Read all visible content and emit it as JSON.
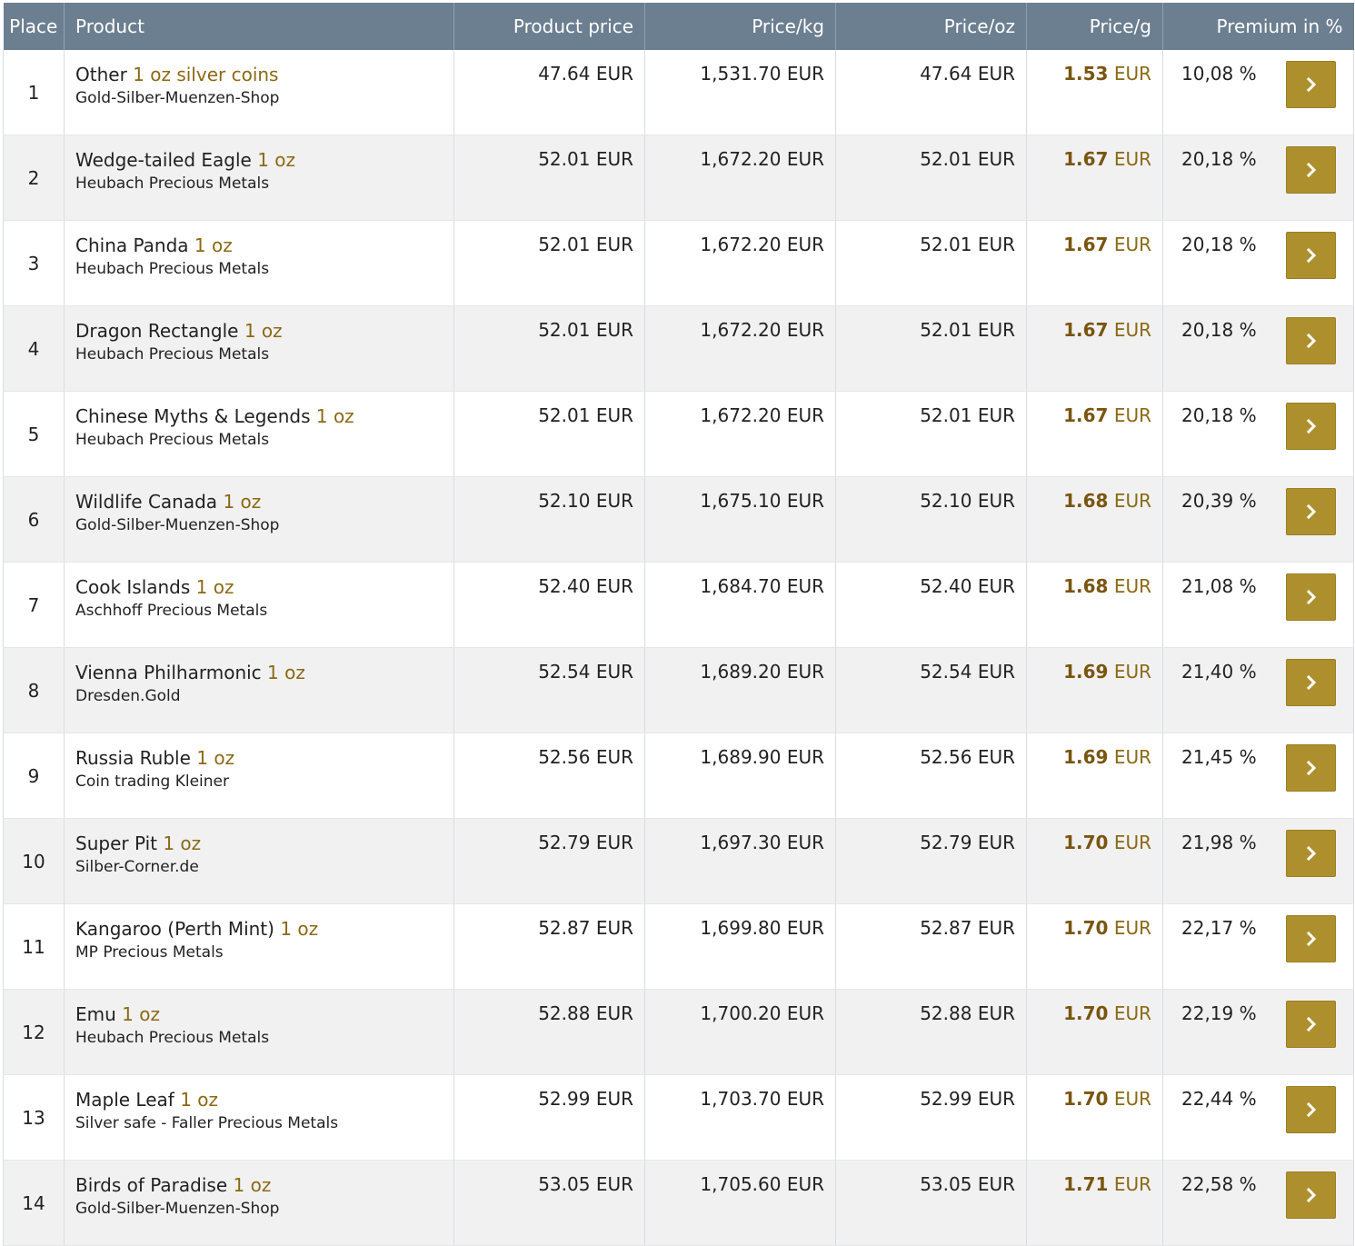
{
  "header": {
    "place": "Place",
    "product": "Product",
    "product_price": "Product price",
    "price_kg": "Price/kg",
    "price_oz": "Price/oz",
    "price_g": "Price/g",
    "premium": "Premium in %"
  },
  "currency": "EUR",
  "colors": {
    "header_bg": "#6c7f91",
    "accent_gold": "#ad8f2d",
    "weight_text": "#8b6914",
    "stripe": "#f1f1f2"
  },
  "icons": {
    "go": "chevron-right-icon"
  },
  "rows": [
    {
      "place": "1",
      "name": "Other",
      "weight": "1 oz silver coins",
      "shop": "Gold-Silber-Muenzen-Shop",
      "price": "47.64 EUR",
      "price_kg": "1,531.70 EUR",
      "price_oz": "47.64 EUR",
      "price_g": "1.53",
      "premium": "10,08 %"
    },
    {
      "place": "2",
      "name": "Wedge-tailed Eagle",
      "weight": "1 oz",
      "shop": "Heubach Precious Metals",
      "price": "52.01 EUR",
      "price_kg": "1,672.20 EUR",
      "price_oz": "52.01 EUR",
      "price_g": "1.67",
      "premium": "20,18 %"
    },
    {
      "place": "3",
      "name": "China Panda",
      "weight": "1 oz",
      "shop": "Heubach Precious Metals",
      "price": "52.01 EUR",
      "price_kg": "1,672.20 EUR",
      "price_oz": "52.01 EUR",
      "price_g": "1.67",
      "premium": "20,18 %"
    },
    {
      "place": "4",
      "name": "Dragon Rectangle",
      "weight": "1 oz",
      "shop": "Heubach Precious Metals",
      "price": "52.01 EUR",
      "price_kg": "1,672.20 EUR",
      "price_oz": "52.01 EUR",
      "price_g": "1.67",
      "premium": "20,18 %"
    },
    {
      "place": "5",
      "name": "Chinese Myths & Legends",
      "weight": "1 oz",
      "shop": "Heubach Precious Metals",
      "price": "52.01 EUR",
      "price_kg": "1,672.20 EUR",
      "price_oz": "52.01 EUR",
      "price_g": "1.67",
      "premium": "20,18 %"
    },
    {
      "place": "6",
      "name": "Wildlife Canada",
      "weight": "1 oz",
      "shop": "Gold-Silber-Muenzen-Shop",
      "price": "52.10 EUR",
      "price_kg": "1,675.10 EUR",
      "price_oz": "52.10 EUR",
      "price_g": "1.68",
      "premium": "20,39 %"
    },
    {
      "place": "7",
      "name": "Cook Islands",
      "weight": "1 oz",
      "shop": "Aschhoff Precious Metals",
      "price": "52.40 EUR",
      "price_kg": "1,684.70 EUR",
      "price_oz": "52.40 EUR",
      "price_g": "1.68",
      "premium": "21,08 %"
    },
    {
      "place": "8",
      "name": "Vienna Philharmonic",
      "weight": "1 oz",
      "shop": "Dresden.Gold",
      "price": "52.54 EUR",
      "price_kg": "1,689.20 EUR",
      "price_oz": "52.54 EUR",
      "price_g": "1.69",
      "premium": "21,40 %"
    },
    {
      "place": "9",
      "name": "Russia Ruble",
      "weight": "1 oz",
      "shop": "Coin trading Kleiner",
      "price": "52.56 EUR",
      "price_kg": "1,689.90 EUR",
      "price_oz": "52.56 EUR",
      "price_g": "1.69",
      "premium": "21,45 %"
    },
    {
      "place": "10",
      "name": "Super Pit",
      "weight": "1 oz",
      "shop": "Silber-Corner.de",
      "price": "52.79 EUR",
      "price_kg": "1,697.30 EUR",
      "price_oz": "52.79 EUR",
      "price_g": "1.70",
      "premium": "21,98 %"
    },
    {
      "place": "11",
      "name": "Kangaroo (Perth Mint)",
      "weight": "1 oz",
      "shop": "MP Precious Metals",
      "price": "52.87 EUR",
      "price_kg": "1,699.80 EUR",
      "price_oz": "52.87 EUR",
      "price_g": "1.70",
      "premium": "22,17 %"
    },
    {
      "place": "12",
      "name": "Emu",
      "weight": "1 oz",
      "shop": "Heubach Precious Metals",
      "price": "52.88 EUR",
      "price_kg": "1,700.20 EUR",
      "price_oz": "52.88 EUR",
      "price_g": "1.70",
      "premium": "22,19 %"
    },
    {
      "place": "13",
      "name": "Maple Leaf",
      "weight": "1 oz",
      "shop": "Silver safe - Faller Precious Metals",
      "price": "52.99 EUR",
      "price_kg": "1,703.70 EUR",
      "price_oz": "52.99 EUR",
      "price_g": "1.70",
      "premium": "22,44 %"
    },
    {
      "place": "14",
      "name": "Birds of Paradise",
      "weight": "1 oz",
      "shop": "Gold-Silber-Muenzen-Shop",
      "price": "53.05 EUR",
      "price_kg": "1,705.60 EUR",
      "price_oz": "53.05 EUR",
      "price_g": "1.71",
      "premium": "22,58 %"
    }
  ]
}
